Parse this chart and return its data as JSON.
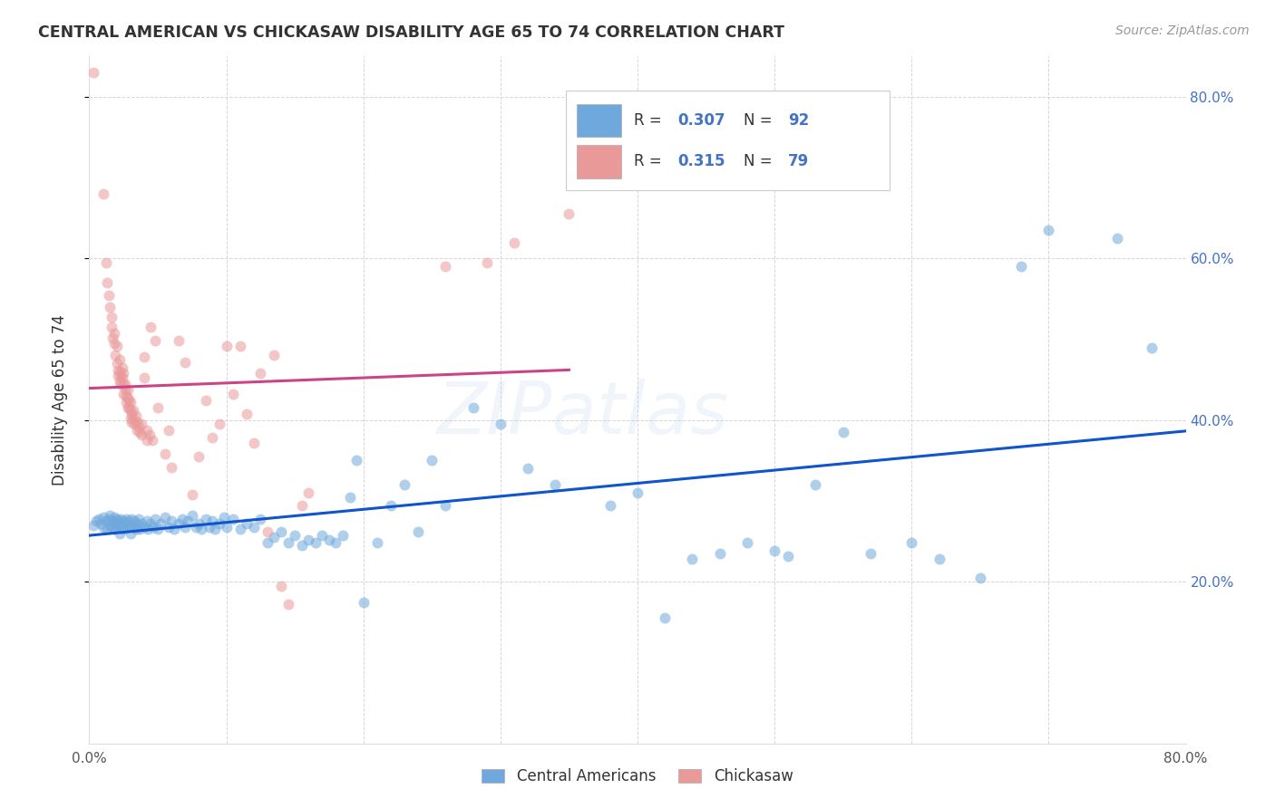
{
  "title": "CENTRAL AMERICAN VS CHICKASAW DISABILITY AGE 65 TO 74 CORRELATION CHART",
  "source": "Source: ZipAtlas.com",
  "ylabel": "Disability Age 65 to 74",
  "x_min": 0.0,
  "x_max": 0.8,
  "y_min": 0.0,
  "y_max": 0.85,
  "blue_color": "#6fa8dc",
  "pink_color": "#ea9999",
  "blue_line_color": "#1155cc",
  "pink_line_color": "#cc4488",
  "watermark": "ZIPatlas",
  "blue_scatter": [
    [
      0.003,
      0.27
    ],
    [
      0.005,
      0.275
    ],
    [
      0.007,
      0.278
    ],
    [
      0.008,
      0.272
    ],
    [
      0.01,
      0.268
    ],
    [
      0.01,
      0.28
    ],
    [
      0.012,
      0.275
    ],
    [
      0.013,
      0.265
    ],
    [
      0.014,
      0.278
    ],
    [
      0.015,
      0.27
    ],
    [
      0.015,
      0.282
    ],
    [
      0.016,
      0.268
    ],
    [
      0.017,
      0.275
    ],
    [
      0.018,
      0.28
    ],
    [
      0.018,
      0.265
    ],
    [
      0.019,
      0.272
    ],
    [
      0.02,
      0.278
    ],
    [
      0.02,
      0.268
    ],
    [
      0.021,
      0.275
    ],
    [
      0.022,
      0.27
    ],
    [
      0.022,
      0.26
    ],
    [
      0.023,
      0.278
    ],
    [
      0.024,
      0.268
    ],
    [
      0.025,
      0.275
    ],
    [
      0.025,
      0.265
    ],
    [
      0.026,
      0.272
    ],
    [
      0.027,
      0.278
    ],
    [
      0.028,
      0.268
    ],
    [
      0.029,
      0.275
    ],
    [
      0.03,
      0.27
    ],
    [
      0.03,
      0.26
    ],
    [
      0.031,
      0.278
    ],
    [
      0.032,
      0.268
    ],
    [
      0.033,
      0.275
    ],
    [
      0.034,
      0.265
    ],
    [
      0.035,
      0.272
    ],
    [
      0.036,
      0.278
    ],
    [
      0.037,
      0.265
    ],
    [
      0.038,
      0.272
    ],
    [
      0.04,
      0.268
    ],
    [
      0.042,
      0.275
    ],
    [
      0.043,
      0.265
    ],
    [
      0.045,
      0.272
    ],
    [
      0.047,
      0.268
    ],
    [
      0.048,
      0.278
    ],
    [
      0.05,
      0.265
    ],
    [
      0.052,
      0.272
    ],
    [
      0.055,
      0.28
    ],
    [
      0.058,
      0.268
    ],
    [
      0.06,
      0.275
    ],
    [
      0.062,
      0.265
    ],
    [
      0.065,
      0.272
    ],
    [
      0.068,
      0.278
    ],
    [
      0.07,
      0.268
    ],
    [
      0.072,
      0.275
    ],
    [
      0.075,
      0.282
    ],
    [
      0.078,
      0.268
    ],
    [
      0.08,
      0.272
    ],
    [
      0.082,
      0.265
    ],
    [
      0.085,
      0.278
    ],
    [
      0.088,
      0.268
    ],
    [
      0.09,
      0.275
    ],
    [
      0.092,
      0.265
    ],
    [
      0.095,
      0.272
    ],
    [
      0.098,
      0.28
    ],
    [
      0.1,
      0.268
    ],
    [
      0.105,
      0.278
    ],
    [
      0.11,
      0.265
    ],
    [
      0.115,
      0.272
    ],
    [
      0.12,
      0.268
    ],
    [
      0.125,
      0.278
    ],
    [
      0.13,
      0.248
    ],
    [
      0.135,
      0.255
    ],
    [
      0.14,
      0.262
    ],
    [
      0.145,
      0.248
    ],
    [
      0.15,
      0.258
    ],
    [
      0.155,
      0.245
    ],
    [
      0.16,
      0.252
    ],
    [
      0.165,
      0.248
    ],
    [
      0.17,
      0.258
    ],
    [
      0.175,
      0.252
    ],
    [
      0.18,
      0.248
    ],
    [
      0.185,
      0.258
    ],
    [
      0.19,
      0.305
    ],
    [
      0.195,
      0.35
    ],
    [
      0.2,
      0.175
    ],
    [
      0.21,
      0.248
    ],
    [
      0.22,
      0.295
    ],
    [
      0.23,
      0.32
    ],
    [
      0.24,
      0.262
    ],
    [
      0.25,
      0.35
    ],
    [
      0.26,
      0.295
    ],
    [
      0.28,
      0.415
    ],
    [
      0.3,
      0.395
    ],
    [
      0.32,
      0.34
    ],
    [
      0.34,
      0.32
    ],
    [
      0.38,
      0.295
    ],
    [
      0.4,
      0.31
    ],
    [
      0.42,
      0.155
    ],
    [
      0.44,
      0.228
    ],
    [
      0.46,
      0.235
    ],
    [
      0.48,
      0.248
    ],
    [
      0.5,
      0.238
    ],
    [
      0.51,
      0.232
    ],
    [
      0.53,
      0.32
    ],
    [
      0.55,
      0.385
    ],
    [
      0.57,
      0.235
    ],
    [
      0.6,
      0.248
    ],
    [
      0.62,
      0.228
    ],
    [
      0.65,
      0.205
    ],
    [
      0.68,
      0.59
    ],
    [
      0.7,
      0.635
    ],
    [
      0.75,
      0.625
    ],
    [
      0.775,
      0.49
    ]
  ],
  "pink_scatter": [
    [
      0.003,
      0.83
    ],
    [
      0.01,
      0.68
    ],
    [
      0.012,
      0.595
    ],
    [
      0.013,
      0.57
    ],
    [
      0.014,
      0.555
    ],
    [
      0.015,
      0.54
    ],
    [
      0.016,
      0.528
    ],
    [
      0.016,
      0.515
    ],
    [
      0.017,
      0.502
    ],
    [
      0.018,
      0.495
    ],
    [
      0.018,
      0.508
    ],
    [
      0.019,
      0.48
    ],
    [
      0.02,
      0.492
    ],
    [
      0.02,
      0.47
    ],
    [
      0.021,
      0.462
    ],
    [
      0.021,
      0.455
    ],
    [
      0.022,
      0.475
    ],
    [
      0.022,
      0.46
    ],
    [
      0.022,
      0.448
    ],
    [
      0.023,
      0.455
    ],
    [
      0.023,
      0.445
    ],
    [
      0.024,
      0.465
    ],
    [
      0.024,
      0.452
    ],
    [
      0.025,
      0.458
    ],
    [
      0.025,
      0.445
    ],
    [
      0.025,
      0.432
    ],
    [
      0.026,
      0.445
    ],
    [
      0.026,
      0.438
    ],
    [
      0.027,
      0.43
    ],
    [
      0.027,
      0.422
    ],
    [
      0.028,
      0.438
    ],
    [
      0.028,
      0.428
    ],
    [
      0.028,
      0.415
    ],
    [
      0.029,
      0.425
    ],
    [
      0.029,
      0.415
    ],
    [
      0.03,
      0.422
    ],
    [
      0.03,
      0.412
    ],
    [
      0.03,
      0.402
    ],
    [
      0.031,
      0.408
    ],
    [
      0.031,
      0.398
    ],
    [
      0.032,
      0.412
    ],
    [
      0.032,
      0.402
    ],
    [
      0.033,
      0.395
    ],
    [
      0.034,
      0.405
    ],
    [
      0.035,
      0.398
    ],
    [
      0.035,
      0.388
    ],
    [
      0.036,
      0.392
    ],
    [
      0.037,
      0.385
    ],
    [
      0.038,
      0.395
    ],
    [
      0.038,
      0.382
    ],
    [
      0.04,
      0.478
    ],
    [
      0.04,
      0.452
    ],
    [
      0.042,
      0.388
    ],
    [
      0.042,
      0.375
    ],
    [
      0.044,
      0.382
    ],
    [
      0.045,
      0.515
    ],
    [
      0.046,
      0.375
    ],
    [
      0.048,
      0.498
    ],
    [
      0.05,
      0.415
    ],
    [
      0.055,
      0.358
    ],
    [
      0.058,
      0.388
    ],
    [
      0.06,
      0.342
    ],
    [
      0.065,
      0.498
    ],
    [
      0.07,
      0.472
    ],
    [
      0.075,
      0.308
    ],
    [
      0.08,
      0.355
    ],
    [
      0.085,
      0.425
    ],
    [
      0.09,
      0.378
    ],
    [
      0.095,
      0.395
    ],
    [
      0.1,
      0.492
    ],
    [
      0.105,
      0.432
    ],
    [
      0.11,
      0.492
    ],
    [
      0.115,
      0.408
    ],
    [
      0.12,
      0.372
    ],
    [
      0.125,
      0.458
    ],
    [
      0.13,
      0.262
    ],
    [
      0.135,
      0.48
    ],
    [
      0.14,
      0.195
    ],
    [
      0.145,
      0.172
    ],
    [
      0.155,
      0.295
    ],
    [
      0.16,
      0.31
    ],
    [
      0.26,
      0.59
    ],
    [
      0.29,
      0.595
    ],
    [
      0.31,
      0.62
    ],
    [
      0.35,
      0.655
    ]
  ]
}
